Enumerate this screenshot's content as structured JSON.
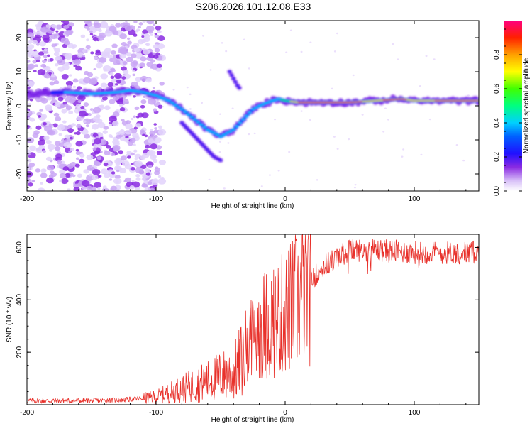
{
  "title": "S206.2026.101.12.08.E33",
  "chart_data": [
    {
      "type": "heatmap",
      "xlabel": "Height of straight line (km)",
      "ylabel": "Frequency (Hz)",
      "xlim": [
        -200,
        150
      ],
      "ylim": [
        -25,
        25
      ],
      "xticks": [
        -200,
        -100,
        0,
        100
      ],
      "yticks": [
        -20,
        -10,
        0,
        10,
        20
      ],
      "colorbar": {
        "label": "Normalized spectral amplitude",
        "range": [
          0,
          1
        ],
        "ticks": [
          0.0,
          0.2,
          0.4,
          0.6,
          0.8
        ]
      },
      "ridge": {
        "x": [
          -200,
          -170,
          -150,
          -130,
          -120,
          -110,
          -100,
          -90,
          -80,
          -70,
          -60,
          -50,
          -40,
          -30,
          -25,
          -20,
          -10,
          -5,
          0,
          10,
          30,
          50,
          70,
          90,
          100,
          110,
          130,
          150
        ],
        "freq": [
          3.5,
          4,
          3.5,
          4,
          4.5,
          4,
          3,
          1.5,
          -1,
          -4,
          -7,
          -9,
          -7,
          -3,
          -1,
          0,
          1.5,
          2,
          1.5,
          1,
          1,
          1,
          1.5,
          2,
          1.5,
          1.5,
          1.5,
          1.5
        ]
      },
      "branches": [
        {
          "x": [
            -80,
            -70,
            -60,
            -55,
            -50
          ],
          "freq": [
            -5,
            -9,
            -13,
            -15,
            -16
          ]
        },
        {
          "x": [
            -43,
            -40,
            -37,
            -35
          ],
          "freq": [
            10,
            8,
            6,
            5
          ]
        }
      ]
    },
    {
      "type": "line",
      "xlabel": "Height of straight line (km)",
      "ylabel": "SNR (10 * v/v)",
      "xlim": [
        -200,
        150
      ],
      "ylim": [
        0,
        650
      ],
      "xticks": [
        -200,
        -100,
        0,
        100
      ],
      "yticks": [
        200,
        400,
        600
      ],
      "color": "#e8302a",
      "trend": {
        "x": [
          -200,
          -150,
          -120,
          -100,
          -80,
          -60,
          -50,
          -40,
          -30,
          -25,
          -20,
          -10,
          0,
          10,
          20,
          30,
          40,
          50,
          70,
          100,
          150
        ],
        "y": [
          15,
          15,
          20,
          30,
          60,
          90,
          110,
          120,
          200,
          250,
          300,
          320,
          350,
          400,
          470,
          530,
          560,
          590,
          590,
          580,
          580
        ]
      }
    }
  ]
}
